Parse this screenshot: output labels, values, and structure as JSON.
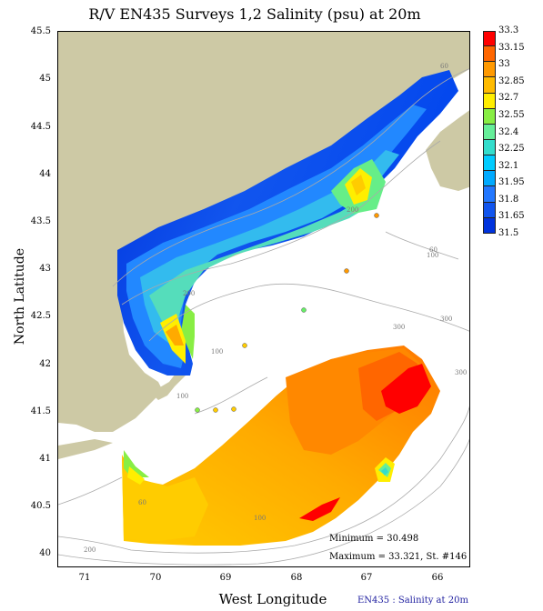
{
  "title": "R/V EN435 Surveys 1,2 Salinity (psu) at 20m",
  "x_axis": {
    "label": "West Longitude",
    "ticks": [
      "71",
      "70",
      "69",
      "68",
      "67",
      "66"
    ]
  },
  "y_axis": {
    "label": "North Latitude",
    "ticks": [
      "45.5",
      "45",
      "44.5",
      "44",
      "43.5",
      "43",
      "42.5",
      "42",
      "41.5",
      "41",
      "40.5",
      "40"
    ]
  },
  "colorbar": {
    "labels": [
      "33.3",
      "33.15",
      "33",
      "32.85",
      "32.7",
      "32.55",
      "32.4",
      "32.25",
      "32.1",
      "31.95",
      "31.8",
      "31.65",
      "31.5"
    ],
    "colors": [
      "#ff0000",
      "#ff6600",
      "#ff9900",
      "#ffbb00",
      "#ffee00",
      "#88ee44",
      "#66ee99",
      "#33ddcc",
      "#00ccff",
      "#00aaff",
      "#2277ff",
      "#1155ee",
      "#0033dd"
    ]
  },
  "contour_labels": [
    "60",
    "100",
    "200",
    "300",
    "100",
    "60",
    "300",
    "100",
    "200",
    "300",
    "60",
    "100",
    "200"
  ],
  "stats": {
    "minimum": "Minimum = 30.498",
    "maximum": "Maximum = 33.321, St. #146"
  },
  "footer": "EN435 : Salinity at 20m",
  "land_color": "#cdc9a5"
}
